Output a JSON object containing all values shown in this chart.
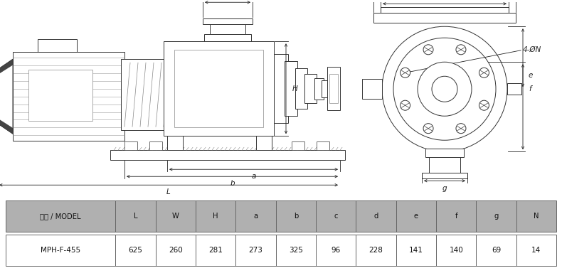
{
  "table_header": [
    "型式 / MODEL",
    "L",
    "W",
    "H",
    "a",
    "b",
    "c",
    "d",
    "e",
    "f",
    "g",
    "N"
  ],
  "table_row": [
    "MPH-F-455",
    "625",
    "260",
    "281",
    "273",
    "325",
    "96",
    "228",
    "141",
    "140",
    "69",
    "14"
  ],
  "header_bg": "#b0b0b0",
  "row_bg": "#ffffff",
  "border_color": "#666666",
  "text_color": "#111111",
  "dim_color": "#222222",
  "line_color": "#333333",
  "background": "#ffffff",
  "draw_lw": 0.7,
  "dim_lw": 0.6
}
